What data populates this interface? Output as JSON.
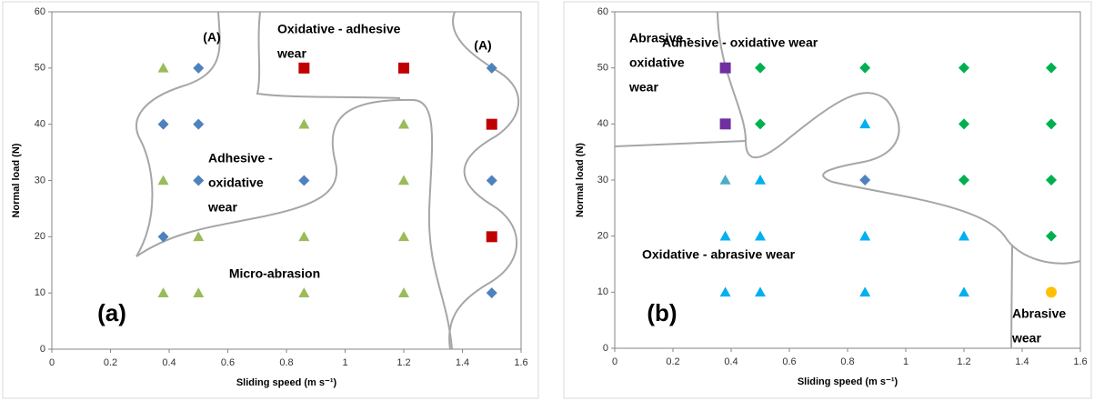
{
  "chart_data": [
    {
      "type": "scatter",
      "xlabel": "Sliding speed (m s⁻¹)",
      "ylabel": "Normal load (N)",
      "xlim": [
        0,
        1.6
      ],
      "ylim": [
        0,
        60
      ],
      "xticks": [
        0,
        0.2,
        0.4,
        0.6,
        0.8,
        1,
        1.2,
        1.4,
        1.6
      ],
      "yticks": [
        0,
        10,
        20,
        30,
        40,
        50,
        60
      ],
      "series": [
        {
          "color": "#9bbb59",
          "marker": "triangle",
          "x": [
            0.38,
            0.38,
            0.5,
            0.38,
            0.5,
            0.86,
            0.86,
            0.86,
            1.2,
            1.2,
            1.2,
            1.2
          ],
          "y": [
            50,
            30,
            20,
            10,
            10,
            40,
            20,
            10,
            40,
            30,
            20,
            10
          ]
        },
        {
          "color": "#4f81bd",
          "marker": "diamond",
          "x": [
            0.5,
            0.38,
            0.5,
            0.5,
            0.86,
            0.38,
            1.5,
            1.5,
            1.5
          ],
          "y": [
            50,
            40,
            40,
            30,
            30,
            20,
            50,
            30,
            10
          ]
        },
        {
          "color": "#c00000",
          "marker": "square",
          "x": [
            0.86,
            1.2,
            1.5,
            1.5
          ],
          "y": [
            50,
            50,
            40,
            20
          ]
        }
      ],
      "annotations": [
        {
          "lines": [
            "(A)"
          ]
        },
        {
          "lines": [
            "Oxidative - adhesive",
            "wear"
          ]
        },
        {
          "lines": [
            "(A)"
          ]
        },
        {
          "lines": [
            "Adhesive -",
            "oxidative",
            "wear"
          ]
        },
        {
          "lines": [
            "Micro-abrasion"
          ]
        },
        {
          "lines": [
            "(a)"
          ]
        }
      ]
    },
    {
      "type": "scatter",
      "xlabel": "Sliding speed (m s⁻¹)",
      "ylabel": "Normal load (N)",
      "xlim": [
        0,
        1.6
      ],
      "ylim": [
        0,
        60
      ],
      "xticks": [
        0,
        0.2,
        0.4,
        0.6,
        0.8,
        1,
        1.2,
        1.4,
        1.6
      ],
      "yticks": [
        0,
        10,
        20,
        30,
        40,
        50,
        60
      ],
      "series": [
        {
          "color": "#00b050",
          "marker": "diamond",
          "x": [
            0.5,
            0.86,
            1.2,
            1.5,
            0.5,
            1.2,
            1.5,
            1.2,
            1.5,
            1.5
          ],
          "y": [
            50,
            50,
            50,
            50,
            40,
            40,
            40,
            30,
            30,
            20
          ]
        },
        {
          "color": "#7030a0",
          "marker": "square",
          "x": [
            0.38,
            0.38
          ],
          "y": [
            50,
            40
          ]
        },
        {
          "color": "#00b0f0",
          "marker": "triangle",
          "x": [
            0.5,
            0.38,
            0.5,
            0.86,
            0.86,
            1.2,
            0.38,
            0.5,
            0.86,
            1.2
          ],
          "y": [
            30,
            20,
            20,
            40,
            20,
            20,
            10,
            10,
            10,
            10
          ]
        },
        {
          "color": "#4bacc6",
          "marker": "triangle",
          "x": [
            0.38
          ],
          "y": [
            30
          ]
        },
        {
          "color": "#4f81bd",
          "marker": "diamond",
          "x": [
            0.86
          ],
          "y": [
            30
          ]
        },
        {
          "color": "#ffc000",
          "marker": "circle",
          "x": [
            1.5
          ],
          "y": [
            10
          ]
        }
      ],
      "annotations": [
        {
          "lines": [
            "Abrasive -",
            "oxidative",
            "wear"
          ]
        },
        {
          "lines": [
            "Adhesive - oxidative wear"
          ]
        },
        {
          "lines": [
            "Oxidative - abrasive wear"
          ]
        },
        {
          "lines": [
            "Abrasive",
            "wear"
          ]
        },
        {
          "lines": [
            "(b)"
          ]
        }
      ]
    }
  ]
}
